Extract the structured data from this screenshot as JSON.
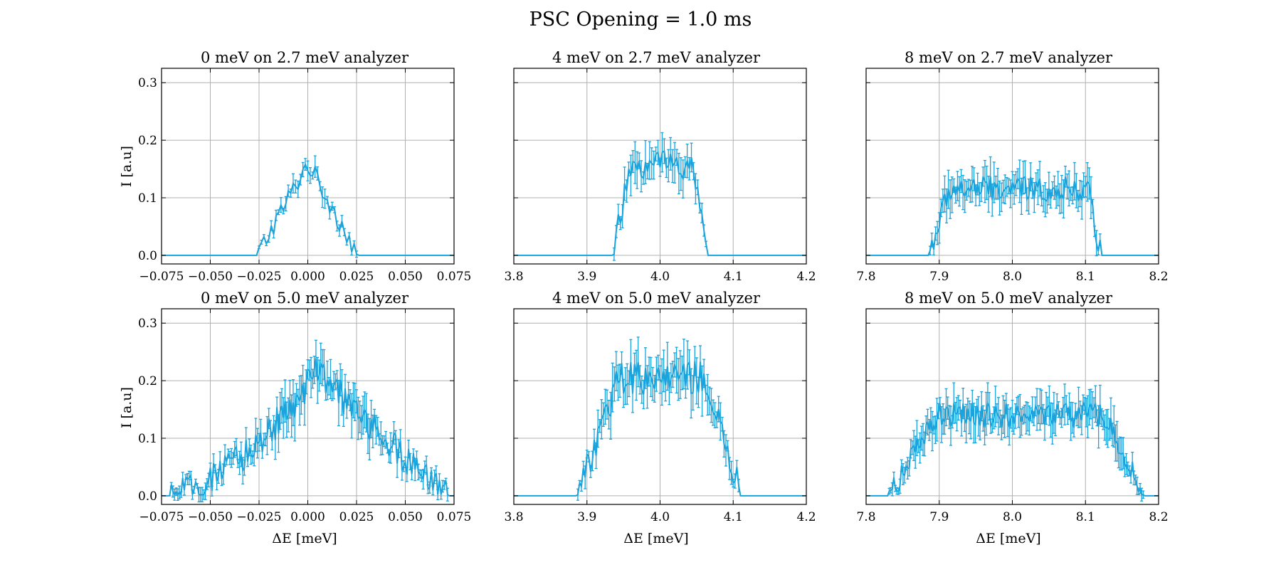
{
  "figure": {
    "title": "PSC Opening = 1.0 ms"
  },
  "colors": {
    "series": "#1ba3dc",
    "grid": "#b0b0b0",
    "frame": "#000000"
  },
  "chart_data": [
    {
      "type": "line",
      "error_bars": true,
      "title": "0 meV on 2.7 meV analyzer",
      "xlabel": "",
      "ylabel": "I [a.u]",
      "xlim": [
        -0.075,
        0.075
      ],
      "ylim": [
        -0.015,
        0.325
      ],
      "xticks": [
        -0.075,
        -0.05,
        -0.025,
        0.0,
        0.025,
        0.05,
        0.075
      ],
      "xtick_labels": [
        "−0.075",
        "−0.050",
        "−0.025",
        "0.000",
        "0.025",
        "0.050",
        "0.075"
      ],
      "yticks": [
        0.0,
        0.1,
        0.2,
        0.3
      ],
      "ytick_labels": [
        "0.0",
        "0.1",
        "0.2",
        "0.3"
      ],
      "grid": true,
      "profile": {
        "shape": "triangle",
        "center": 0.0,
        "half_width": 0.026,
        "peak": 0.16,
        "noise": 0.018,
        "err": 0.015,
        "samples": 120
      }
    },
    {
      "type": "line",
      "error_bars": true,
      "title": "4 meV on 2.7 meV analyzer",
      "xlabel": "",
      "ylabel": "",
      "xlim": [
        3.8,
        4.2
      ],
      "ylim": [
        -0.015,
        0.325
      ],
      "xticks": [
        3.8,
        3.9,
        4.0,
        4.1,
        4.2
      ],
      "xtick_labels": [
        "3.8",
        "3.9",
        "4.0",
        "4.1",
        "4.2"
      ],
      "yticks": [
        0.0,
        0.1,
        0.2,
        0.3
      ],
      "ytick_labels": [],
      "grid": true,
      "profile": {
        "shape": "trapezoid",
        "x_start": 3.935,
        "x_top_start": 3.962,
        "x_top_end": 4.043,
        "x_end": 4.065,
        "peak": 0.16,
        "noise": 0.028,
        "err": 0.03,
        "samples": 140
      }
    },
    {
      "type": "line",
      "error_bars": true,
      "title": "8 meV on 2.7 meV analyzer",
      "xlabel": "",
      "ylabel": "",
      "xlim": [
        7.8,
        8.2
      ],
      "ylim": [
        -0.015,
        0.325
      ],
      "xticks": [
        7.8,
        7.9,
        8.0,
        8.1,
        8.2
      ],
      "xtick_labels": [
        "7.8",
        "7.9",
        "8.0",
        "8.1",
        "8.2"
      ],
      "yticks": [
        0.0,
        0.1,
        0.2,
        0.3
      ],
      "ytick_labels": [],
      "grid": true,
      "profile": {
        "shape": "trapezoid",
        "x_start": 7.885,
        "x_top_start": 7.915,
        "x_top_end": 8.103,
        "x_end": 8.122,
        "peak": 0.115,
        "noise": 0.022,
        "err": 0.03,
        "samples": 160
      }
    },
    {
      "type": "line",
      "error_bars": true,
      "title": "0 meV on 5.0 meV analyzer",
      "xlabel": "ΔE [meV]",
      "ylabel": "I [a.u]",
      "xlim": [
        -0.075,
        0.075
      ],
      "ylim": [
        -0.015,
        0.325
      ],
      "xticks": [
        -0.075,
        -0.05,
        -0.025,
        0.0,
        0.025,
        0.05,
        0.075
      ],
      "xtick_labels": [
        "−0.075",
        "−0.050",
        "−0.025",
        "0.000",
        "0.025",
        "0.050",
        "0.075"
      ],
      "yticks": [
        0.0,
        0.1,
        0.2,
        0.3
      ],
      "ytick_labels": [
        "0.0",
        "0.1",
        "0.2",
        "0.3"
      ],
      "grid": true,
      "profile": {
        "shape": "asym",
        "x_start": -0.07,
        "x_peak": 0.005,
        "x_end": 0.072,
        "peak": 0.215,
        "noise": 0.028,
        "err": 0.035,
        "samples": 180
      }
    },
    {
      "type": "line",
      "error_bars": true,
      "title": "4 meV on 5.0 meV analyzer",
      "xlabel": "ΔE [meV]",
      "ylabel": "",
      "xlim": [
        3.8,
        4.2
      ],
      "ylim": [
        -0.015,
        0.325
      ],
      "xticks": [
        3.8,
        3.9,
        4.0,
        4.1,
        4.2
      ],
      "xtick_labels": [
        "3.8",
        "3.9",
        "4.0",
        "4.1",
        "4.2"
      ],
      "yticks": [
        0.0,
        0.1,
        0.2,
        0.3
      ],
      "ytick_labels": [],
      "grid": true,
      "profile": {
        "shape": "trapezoid",
        "x_start": 3.885,
        "x_top_start": 3.945,
        "x_top_end": 4.06,
        "x_end": 4.11,
        "peak": 0.205,
        "noise": 0.03,
        "err": 0.035,
        "samples": 160
      }
    },
    {
      "type": "line",
      "error_bars": true,
      "title": "8 meV on 5.0 meV analyzer",
      "xlabel": "ΔE [meV]",
      "ylabel": "",
      "xlim": [
        7.8,
        8.2
      ],
      "ylim": [
        -0.015,
        0.325
      ],
      "xticks": [
        7.8,
        7.9,
        8.0,
        8.1,
        8.2
      ],
      "xtick_labels": [
        "7.8",
        "7.9",
        "8.0",
        "8.1",
        "8.2"
      ],
      "yticks": [
        0.0,
        0.1,
        0.2,
        0.3
      ],
      "ytick_labels": [],
      "grid": true,
      "profile": {
        "shape": "trapezoid",
        "x_start": 7.83,
        "x_top_start": 7.9,
        "x_top_end": 8.125,
        "x_end": 8.18,
        "peak": 0.14,
        "noise": 0.022,
        "err": 0.03,
        "samples": 190
      }
    }
  ]
}
